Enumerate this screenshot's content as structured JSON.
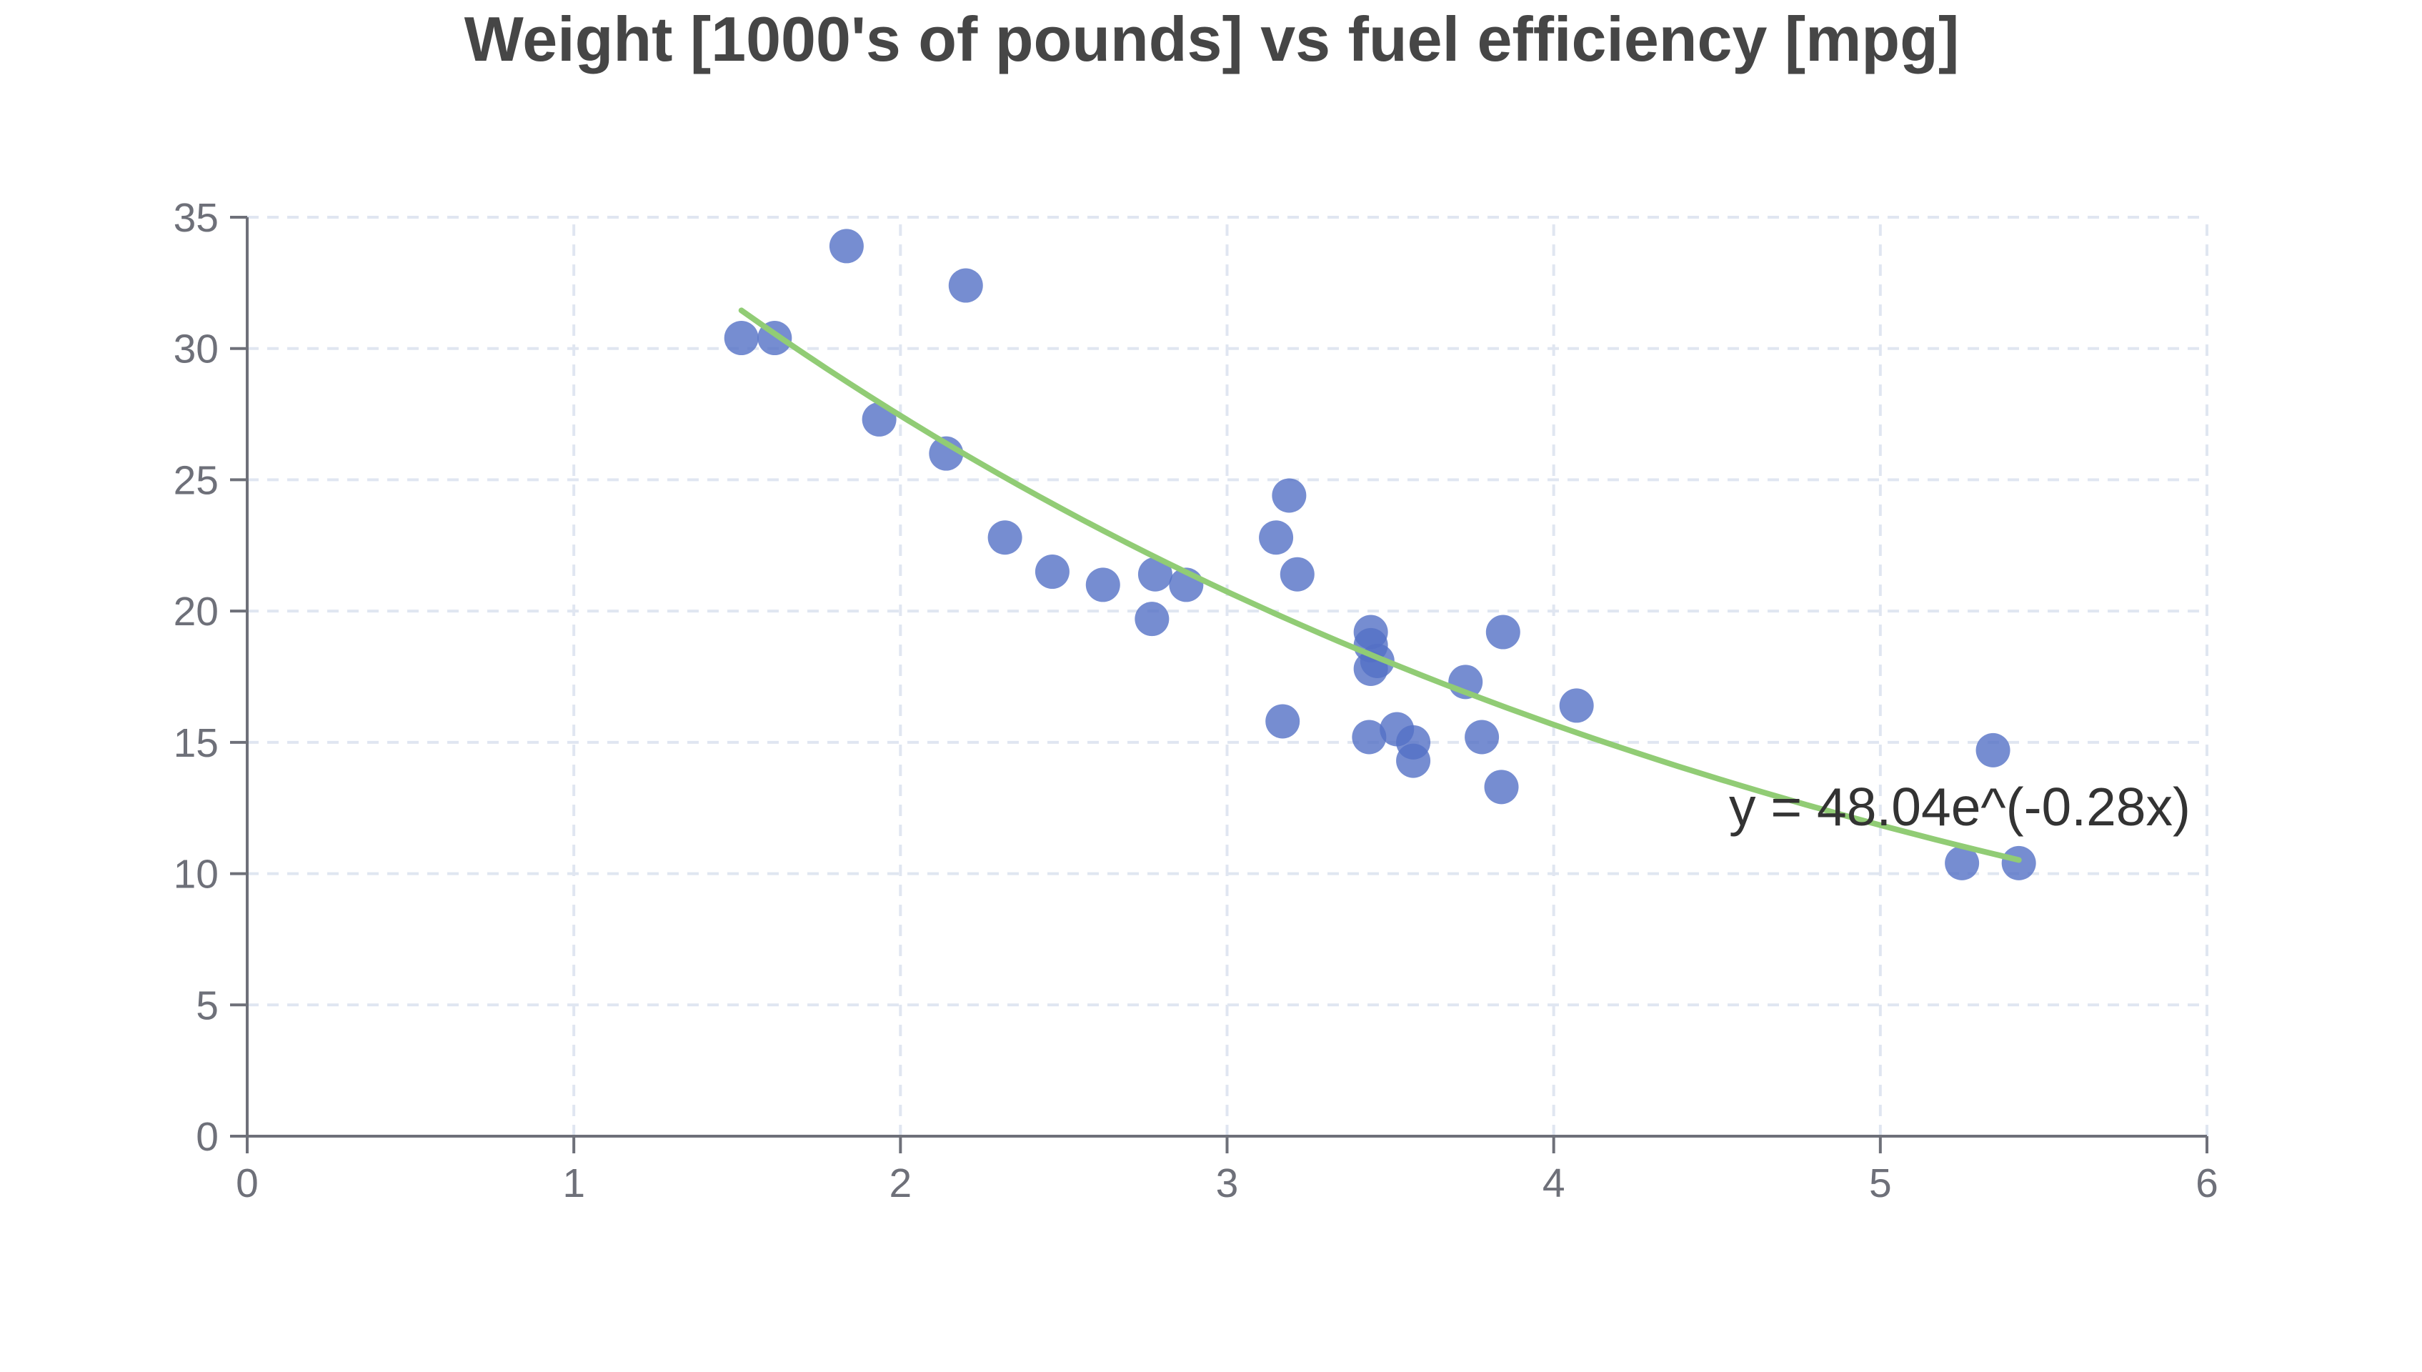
{
  "chart_data": {
    "type": "scatter",
    "title": "Weight [1000's of pounds] vs fuel efficiency [mpg]",
    "xlabel": "",
    "ylabel": "",
    "xlim": [
      0,
      6
    ],
    "ylim": [
      0,
      35
    ],
    "x_ticks": [
      0,
      1,
      2,
      3,
      4,
      5,
      6
    ],
    "y_ticks": [
      0,
      5,
      10,
      15,
      20,
      25,
      30,
      35
    ],
    "grid": true,
    "legend": "none",
    "series": [
      {
        "points": [
          {
            "x": 1.513,
            "y": 30.4
          },
          {
            "x": 1.615,
            "y": 30.4
          },
          {
            "x": 1.835,
            "y": 33.9
          },
          {
            "x": 1.935,
            "y": 27.3
          },
          {
            "x": 2.14,
            "y": 26.0
          },
          {
            "x": 2.2,
            "y": 32.4
          },
          {
            "x": 2.32,
            "y": 22.8
          },
          {
            "x": 2.465,
            "y": 21.5
          },
          {
            "x": 2.62,
            "y": 21.0
          },
          {
            "x": 2.77,
            "y": 19.7
          },
          {
            "x": 2.78,
            "y": 21.4
          },
          {
            "x": 2.875,
            "y": 21.0
          },
          {
            "x": 3.15,
            "y": 22.8
          },
          {
            "x": 3.17,
            "y": 15.8
          },
          {
            "x": 3.19,
            "y": 24.4
          },
          {
            "x": 3.215,
            "y": 21.4
          },
          {
            "x": 3.435,
            "y": 15.2
          },
          {
            "x": 3.44,
            "y": 19.2
          },
          {
            "x": 3.44,
            "y": 18.7
          },
          {
            "x": 3.44,
            "y": 17.8
          },
          {
            "x": 3.46,
            "y": 18.1
          },
          {
            "x": 3.52,
            "y": 15.5
          },
          {
            "x": 3.57,
            "y": 15.0
          },
          {
            "x": 3.57,
            "y": 14.3
          },
          {
            "x": 3.73,
            "y": 17.3
          },
          {
            "x": 3.78,
            "y": 15.2
          },
          {
            "x": 3.84,
            "y": 13.3
          },
          {
            "x": 3.845,
            "y": 19.2
          },
          {
            "x": 4.07,
            "y": 16.4
          },
          {
            "x": 5.25,
            "y": 10.4
          },
          {
            "x": 5.345,
            "y": 14.7
          },
          {
            "x": 5.424,
            "y": 10.4
          }
        ]
      }
    ],
    "trendline": {
      "type": "exponential",
      "a": 48.04,
      "b": -0.28,
      "x_range": [
        1.513,
        5.424
      ],
      "label": "y = 48.04e^(-0.28x)"
    },
    "colors": {
      "points": "#5470c6",
      "trendline": "#91cc75",
      "title": "#464646",
      "axis": "#6e7079",
      "grid": "#e0e6f1",
      "tick_label": "#6e7079",
      "equation": "#333333"
    }
  }
}
